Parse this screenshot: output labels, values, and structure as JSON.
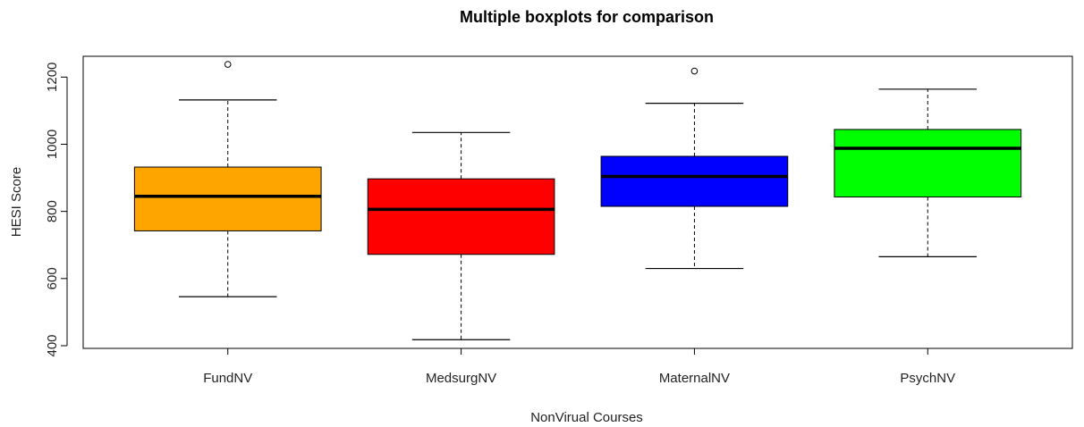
{
  "chart_data": {
    "type": "boxplot",
    "title": "Multiple boxplots for comparison",
    "xlabel": "NonVirual Courses",
    "ylabel": "HESI Score",
    "ylim": [
      392,
      1262
    ],
    "yticks": [
      400,
      600,
      800,
      1000,
      1200
    ],
    "grid": false,
    "categories": [
      "FundNV",
      "MedsurgNV",
      "MaternalNV",
      "PsychNV"
    ],
    "boxes": [
      {
        "name": "FundNV",
        "color": "#FFA500",
        "whisker_low": 546,
        "q1": 742,
        "median": 845,
        "q3": 932,
        "whisker_high": 1132,
        "outliers": [
          1238
        ]
      },
      {
        "name": "MedsurgNV",
        "color": "#FF0000",
        "whisker_low": 418,
        "q1": 672,
        "median": 806,
        "q3": 897,
        "whisker_high": 1035,
        "outliers": []
      },
      {
        "name": "MaternalNV",
        "color": "#0000FF",
        "whisker_low": 630,
        "q1": 815,
        "median": 904,
        "q3": 964,
        "whisker_high": 1122,
        "outliers": [
          1218
        ]
      },
      {
        "name": "PsychNV",
        "color": "#00FF00",
        "whisker_low": 665,
        "q1": 843,
        "median": 988,
        "q3": 1044,
        "whisker_high": 1164,
        "outliers": []
      }
    ]
  }
}
